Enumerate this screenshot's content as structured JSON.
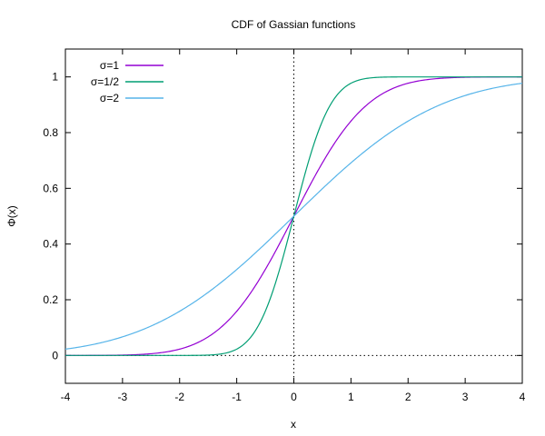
{
  "chart_data": {
    "type": "line",
    "title": "CDF of Gassian functions",
    "xlabel": "x",
    "ylabel": "Φ(x)",
    "xlim": [
      -4,
      4
    ],
    "ylim": [
      -0.1,
      1.1
    ],
    "xticks": [
      -4,
      -3,
      -2,
      -1,
      0,
      1,
      2,
      3,
      4
    ],
    "yticks": [
      0,
      0.2,
      0.4,
      0.6,
      0.8,
      1
    ],
    "grid": false,
    "legend_position": "top-left",
    "reference_lines": [
      "x=0",
      "y=0"
    ],
    "x": [
      -4,
      -3.5,
      -3,
      -2.5,
      -2,
      -1.5,
      -1,
      -0.75,
      -0.5,
      -0.25,
      0,
      0.25,
      0.5,
      0.75,
      1,
      1.5,
      2,
      2.5,
      3,
      3.5,
      4
    ],
    "series": [
      {
        "name": "σ=1",
        "color": "#9400d3",
        "values": [
          3e-05,
          0.0002,
          0.0013,
          0.0062,
          0.0228,
          0.0668,
          0.1587,
          0.2266,
          0.3085,
          0.4013,
          0.5,
          0.5987,
          0.6915,
          0.7734,
          0.8413,
          0.9332,
          0.9772,
          0.9938,
          0.9987,
          0.9998,
          0.99997
        ]
      },
      {
        "name": "σ=1/2",
        "color": "#009e73",
        "values": [
          0,
          0,
          0,
          0,
          3e-05,
          0.0013,
          0.0228,
          0.0668,
          0.1587,
          0.3085,
          0.5,
          0.6915,
          0.8413,
          0.9332,
          0.9772,
          0.9987,
          0.99997,
          1,
          1,
          1,
          1
        ]
      },
      {
        "name": "σ=2",
        "color": "#56b4e9",
        "values": [
          0.0228,
          0.0401,
          0.0668,
          0.1056,
          0.1587,
          0.2266,
          0.3085,
          0.3538,
          0.4013,
          0.4503,
          0.5,
          0.5497,
          0.5987,
          0.6462,
          0.6915,
          0.7734,
          0.8413,
          0.8944,
          0.9332,
          0.9599,
          0.9772
        ]
      }
    ]
  }
}
